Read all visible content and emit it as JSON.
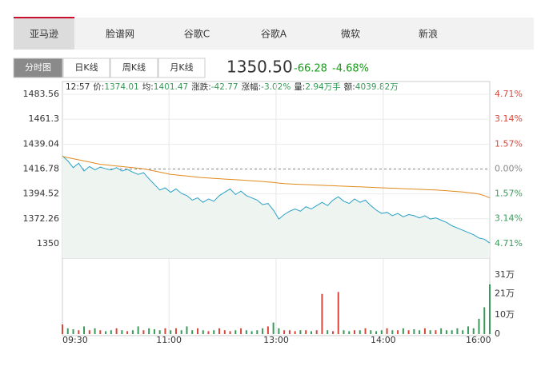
{
  "tabs": [
    "亚马逊",
    "脸谱网",
    "谷歌C",
    "谷歌A",
    "微软",
    "新浪"
  ],
  "subtabs": [
    "分时图",
    "日K线",
    "周K线",
    "月K线"
  ],
  "quote": {
    "price": "1350.50",
    "change": "-66.28",
    "percent": "-4.68%"
  },
  "info": {
    "time": "12:57",
    "items": [
      {
        "label": "价:",
        "value": "1374.01"
      },
      {
        "label": "均:",
        "value": "1401.47"
      },
      {
        "label": "涨跌:",
        "value": "-42.77"
      },
      {
        "label": "涨幅:",
        "value": "-3.02%"
      },
      {
        "label": "量:",
        "value": "2.94万手"
      },
      {
        "label": "额:",
        "value": "4039.82万"
      }
    ]
  },
  "chart_data": {
    "type": "line",
    "series": [
      {
        "name": "价",
        "color": "#2aa0c8",
        "fill": "#eef5f0",
        "values": [
          1428.5,
          1424,
          1418,
          1422,
          1415,
          1419,
          1416,
          1418.5,
          1417,
          1416,
          1418,
          1415,
          1416.5,
          1414,
          1412,
          1413.5,
          1408,
          1403,
          1398,
          1400,
          1396,
          1399,
          1395,
          1393,
          1389,
          1391,
          1387,
          1390,
          1388,
          1393,
          1396,
          1399,
          1394,
          1397,
          1393,
          1391,
          1389,
          1385,
          1386,
          1380,
          1372,
          1376,
          1379,
          1381,
          1379,
          1383,
          1381,
          1384,
          1387,
          1384,
          1389,
          1392,
          1388,
          1386,
          1390,
          1387,
          1389,
          1384,
          1380,
          1377,
          1378,
          1375,
          1377,
          1374,
          1376,
          1375,
          1373,
          1375,
          1372,
          1373,
          1371,
          1369,
          1366,
          1364,
          1362,
          1360,
          1358,
          1355,
          1354,
          1350.5
        ]
      },
      {
        "name": "均",
        "color": "#e08a1e",
        "values": [
          1428,
          1427,
          1426,
          1425,
          1424,
          1423,
          1422,
          1421,
          1420.5,
          1420,
          1419.5,
          1419,
          1418.5,
          1418,
          1417.5,
          1417,
          1416,
          1415,
          1414,
          1413,
          1412,
          1411.5,
          1411,
          1410.5,
          1410,
          1409.5,
          1409,
          1408.7,
          1408.4,
          1408.1,
          1407.8,
          1407.5,
          1407.2,
          1406.9,
          1406.6,
          1406.3,
          1406,
          1405.6,
          1405.2,
          1404.8,
          1404.2,
          1403.8,
          1403.5,
          1403.2,
          1403,
          1402.8,
          1402.6,
          1402.4,
          1402.2,
          1402,
          1401.8,
          1401.6,
          1401.4,
          1401.2,
          1401,
          1400.8,
          1400.6,
          1400.4,
          1400.2,
          1400,
          1399.8,
          1399.6,
          1399.4,
          1399.2,
          1399,
          1398.8,
          1398.6,
          1398.4,
          1398.2,
          1398,
          1397.7,
          1397.4,
          1397,
          1396.6,
          1396.2,
          1395.7,
          1395.1,
          1394.3,
          1393,
          1391
        ]
      }
    ],
    "volume": {
      "values": [
        5,
        3,
        2.5,
        2,
        4,
        2,
        3,
        2,
        1.5,
        2,
        3,
        2,
        1.5,
        2,
        4,
        2,
        3,
        2.5,
        2,
        3,
        2,
        3,
        2,
        4,
        2,
        3,
        2,
        1.5,
        2,
        3,
        2,
        1.5,
        2,
        3,
        2,
        1.5,
        2,
        3,
        4,
        6,
        3,
        2,
        2,
        1.5,
        2,
        2,
        1.5,
        2,
        21,
        2,
        1.5,
        22,
        2,
        1.5,
        2,
        2,
        3,
        2,
        1.5,
        2,
        3,
        2,
        2,
        3,
        2,
        2.5,
        2,
        3,
        2,
        2,
        3,
        2,
        2,
        3,
        2,
        4,
        3,
        8,
        14,
        26
      ],
      "ylim": [
        0,
        39.7
      ],
      "yticks": [
        0,
        {
          "value": 10,
          "label": "10万"
        },
        {
          "value": 21,
          "label": "21万"
        },
        {
          "value": 31,
          "label": "31万"
        }
      ]
    },
    "up_color": "#d9463a",
    "down_color": "#3a9a5a",
    "flat_color": "#888888",
    "base": 1416.78,
    "xlim": [
      0,
      79
    ],
    "xticks": [
      {
        "value": 0,
        "label": "09:30"
      },
      {
        "value": 19.7,
        "label": "11:00"
      },
      {
        "value": 39.5,
        "label": "13:00"
      },
      {
        "value": 59.3,
        "label": "14:00"
      },
      {
        "value": 76.9,
        "label": "16:00"
      }
    ],
    "ylim": [
      1337.07,
      1495.05
    ],
    "yticks": [
      1350.0,
      1372.26,
      1394.52,
      1416.78,
      1439.04,
      1461.3,
      1483.56
    ],
    "y2lim": [
      -5.63,
      5.52
    ],
    "y2ticks": [
      {
        "value": -4.71,
        "label": "4.71%"
      },
      {
        "value": -3.14,
        "label": "3.14%"
      },
      {
        "value": -1.57,
        "label": "1.57%"
      },
      {
        "value": 0,
        "label": "0.00%"
      },
      {
        "value": 1.57,
        "label": "1.57%"
      },
      {
        "value": 3.14,
        "label": "3.14%"
      },
      {
        "value": 4.71,
        "label": "4.71%"
      }
    ],
    "grid": true
  }
}
